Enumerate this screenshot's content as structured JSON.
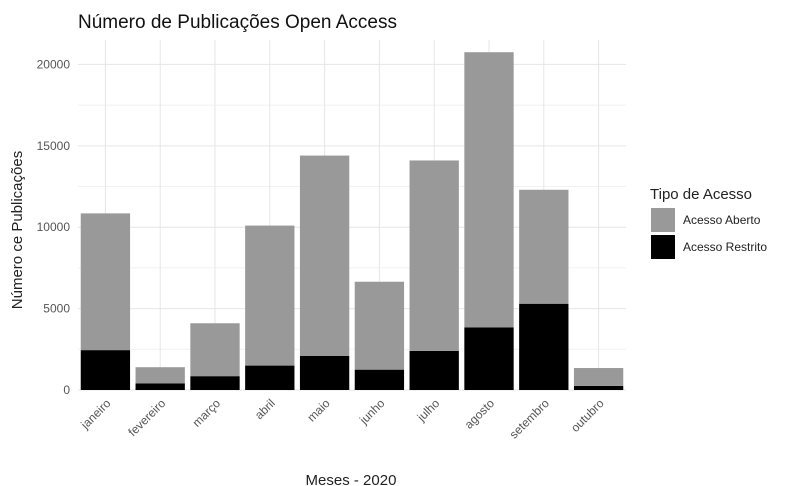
{
  "chart_data": {
    "type": "bar",
    "stacked": true,
    "title": "Número de Publicações Open Access",
    "xlabel": "Meses - 2020",
    "ylabel": "Número ce Publicações",
    "ylim": [
      0,
      21500
    ],
    "yticks": [
      0,
      5000,
      10000,
      15000,
      20000
    ],
    "grid": true,
    "legend": {
      "title": "Tipo de Acesso",
      "position": "right"
    },
    "categories": [
      "janeiro",
      "fevereiro",
      "março",
      "abril",
      "maio",
      "junho",
      "julho",
      "agosto",
      "setembro",
      "outubro"
    ],
    "series": [
      {
        "name": "Acesso Aberto",
        "color": "#999999",
        "values": [
          8400,
          1000,
          3250,
          8600,
          12300,
          5400,
          11700,
          16900,
          7000,
          1100
        ]
      },
      {
        "name": "Acesso Restrito",
        "color": "#000000",
        "values": [
          2450,
          400,
          850,
          1500,
          2100,
          1250,
          2400,
          3850,
          5300,
          250
        ]
      }
    ]
  }
}
